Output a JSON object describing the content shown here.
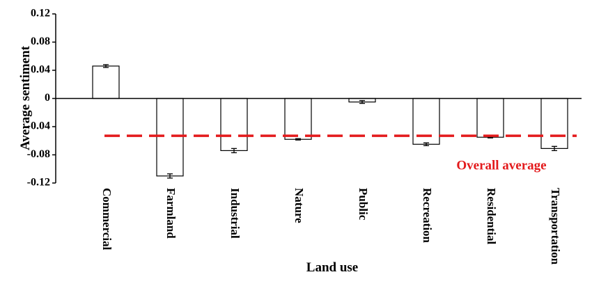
{
  "chart_data": {
    "type": "bar",
    "x_label": "Land use",
    "y_label": "Average sentiment",
    "categories": [
      "Commercial",
      "Farmland",
      "Industrial",
      "Nature",
      "Public",
      "Recreation",
      "Residential",
      "Transportation"
    ],
    "values": [
      0.046,
      -0.11,
      -0.074,
      -0.058,
      -0.005,
      -0.065,
      -0.055,
      -0.071
    ],
    "errors": [
      0.002,
      0.003,
      0.003,
      0.001,
      0.002,
      0.002,
      0.001,
      0.003
    ],
    "color": "#ffffff",
    "ylim": [
      -0.12,
      0.12
    ],
    "yticks": [
      0.12,
      0.08,
      0.04,
      0,
      -0.04,
      -0.08,
      -0.12
    ],
    "reference_line": {
      "value": -0.053,
      "label": "Overall average",
      "color": "#e31a1c"
    }
  }
}
